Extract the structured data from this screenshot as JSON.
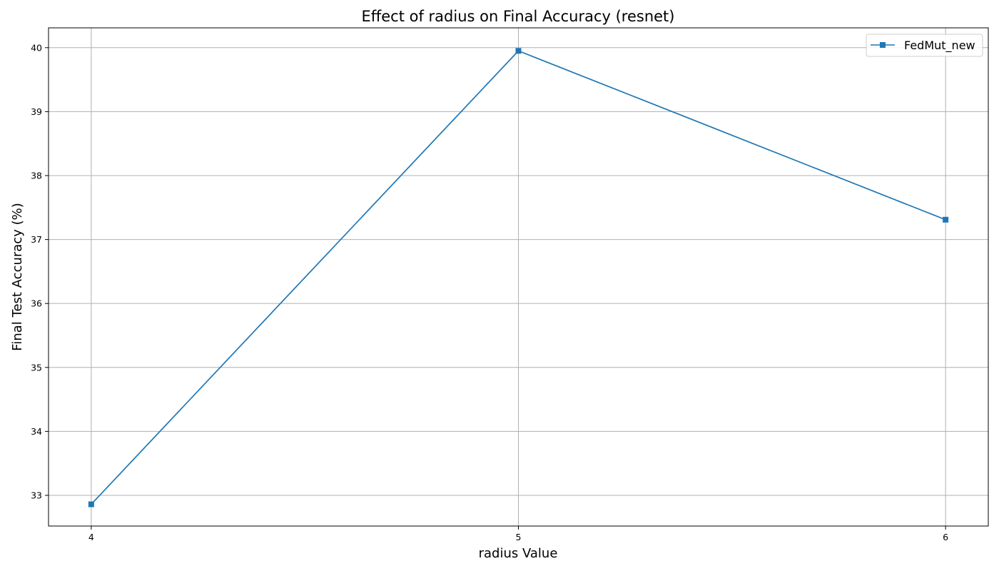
{
  "chart_data": {
    "type": "line",
    "title": "Effect of radius on Final Accuracy (resnet)",
    "xlabel": "radius Value",
    "ylabel": "Final Test Accuracy (%)",
    "x": [
      4,
      5,
      6
    ],
    "x_tick_labels": [
      "4",
      "5",
      "6"
    ],
    "y_ticks": [
      33,
      34,
      35,
      36,
      37,
      38,
      39,
      40
    ],
    "y_tick_labels": [
      "33",
      "34",
      "35",
      "36",
      "37",
      "38",
      "39",
      "40"
    ],
    "xlim": [
      3.9,
      6.1
    ],
    "ylim": [
      32.52,
      40.31
    ],
    "grid": true,
    "legend_position": "top-right",
    "series": [
      {
        "name": "FedMut_new",
        "marker": "square",
        "color": "#1f77b4",
        "values": [
          32.86,
          39.95,
          37.31
        ]
      }
    ]
  }
}
